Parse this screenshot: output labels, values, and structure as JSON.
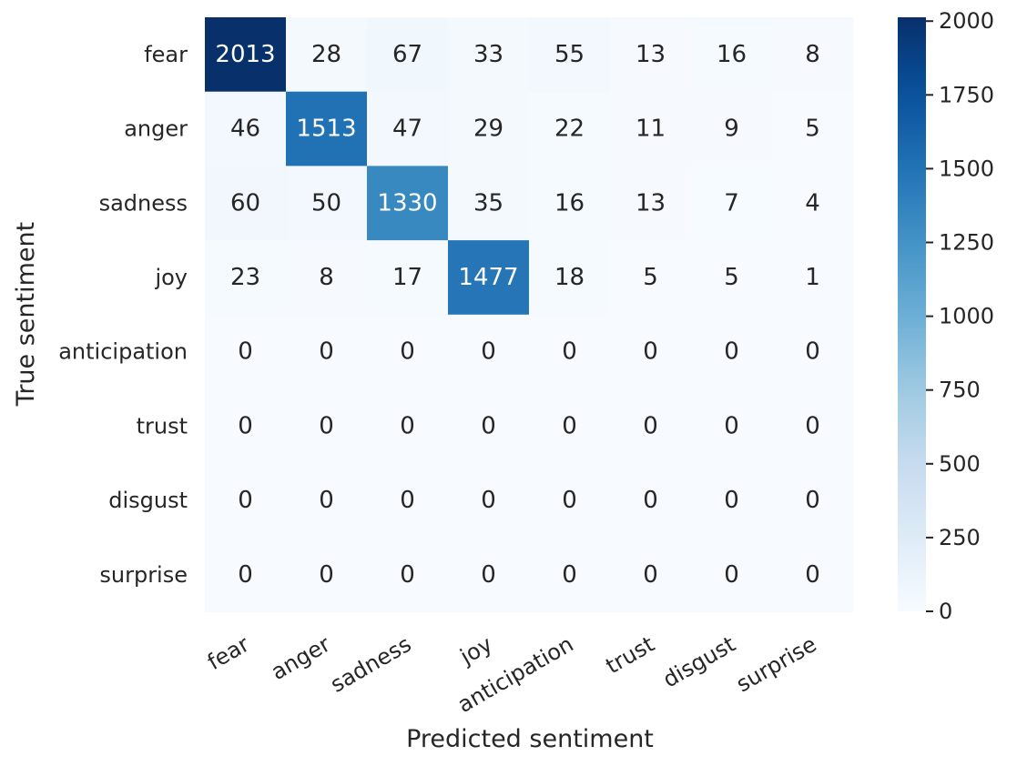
{
  "chart_data": {
    "type": "heatmap",
    "title": "",
    "xlabel": "Predicted sentiment",
    "ylabel": "True sentiment",
    "x_categories": [
      "fear",
      "anger",
      "sadness",
      "joy",
      "anticipation",
      "trust",
      "disgust",
      "surprise"
    ],
    "y_categories": [
      "fear",
      "anger",
      "sadness",
      "joy",
      "anticipation",
      "trust",
      "disgust",
      "surprise"
    ],
    "values": [
      [
        2013,
        28,
        67,
        33,
        55,
        13,
        16,
        8
      ],
      [
        46,
        1513,
        47,
        29,
        22,
        11,
        9,
        5
      ],
      [
        60,
        50,
        1330,
        35,
        16,
        13,
        7,
        4
      ],
      [
        23,
        8,
        17,
        1477,
        18,
        5,
        5,
        1
      ],
      [
        0,
        0,
        0,
        0,
        0,
        0,
        0,
        0
      ],
      [
        0,
        0,
        0,
        0,
        0,
        0,
        0,
        0
      ],
      [
        0,
        0,
        0,
        0,
        0,
        0,
        0,
        0
      ],
      [
        0,
        0,
        0,
        0,
        0,
        0,
        0,
        0
      ]
    ],
    "colorbar": {
      "colormap": "Blues",
      "vmin": 0,
      "vmax": 2013,
      "ticks": [
        0,
        250,
        500,
        750,
        1000,
        1250,
        1500,
        1750,
        2000
      ]
    },
    "x_tick_rotation": "30 degrees",
    "grid": false,
    "annotations": "cell counts"
  }
}
